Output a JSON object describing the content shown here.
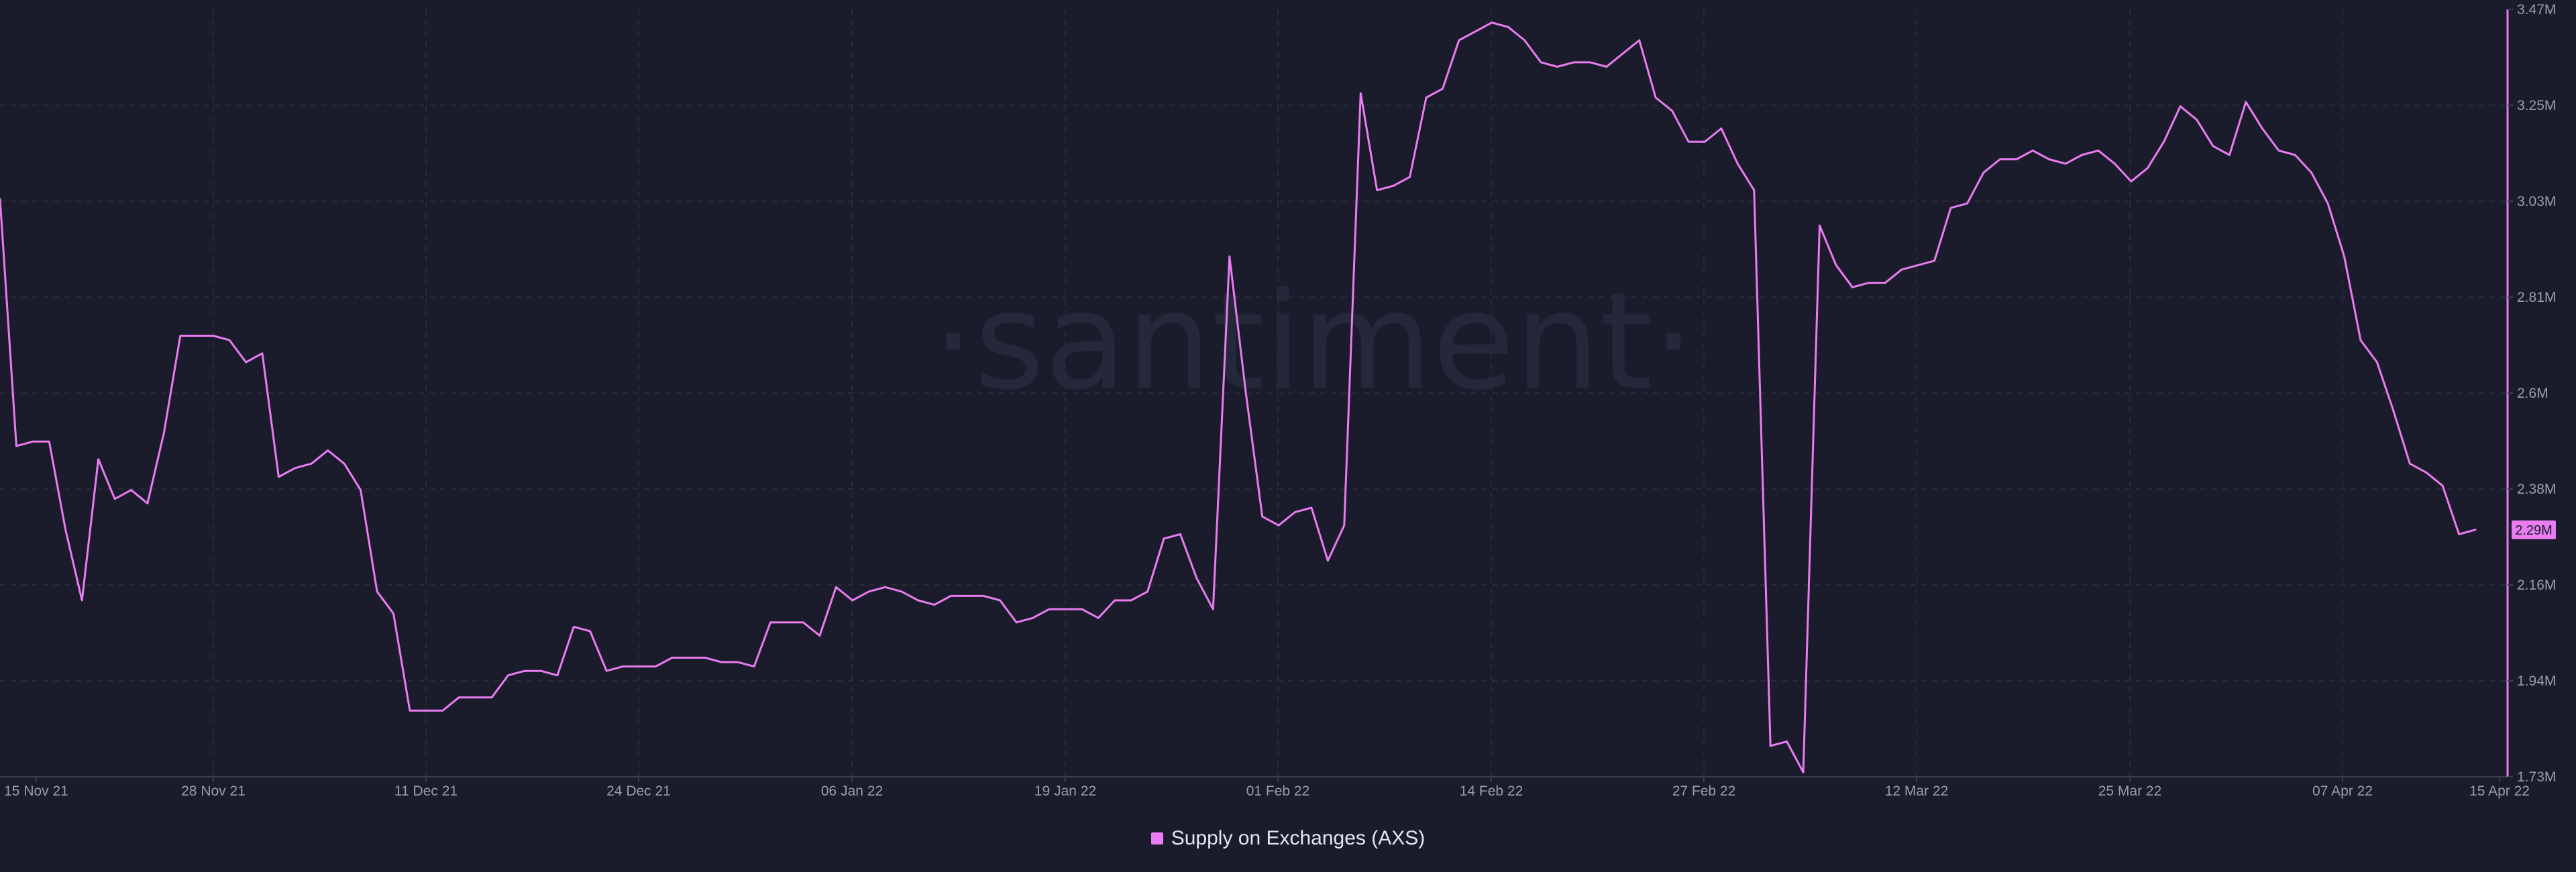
{
  "watermark": "·santiment·",
  "colors": {
    "background": "#1b1c2b",
    "series": "#e87cf0",
    "grid": "#2c2e40",
    "axis": "#3a3c50",
    "tick_text": "#9a9cab",
    "label_text": "#1b1c2b"
  },
  "legend": {
    "label": "Supply on Exchanges (AXS)",
    "placement": "bottom-center"
  },
  "current_value_label": "2.29M",
  "chart_data": {
    "type": "line",
    "title": "",
    "xlabel": "",
    "ylabel": "",
    "grid": true,
    "x_tick_labels": [
      "15 Nov 21",
      "28 Nov 21",
      "11 Dec 21",
      "24 Dec 21",
      "06 Jan 22",
      "19 Jan 22",
      "01 Feb 22",
      "14 Feb 22",
      "27 Feb 22",
      "12 Mar 22",
      "25 Mar 22",
      "07 Apr 22",
      "15 Apr 22"
    ],
    "y_tick_labels": [
      "3.47M",
      "3.25M",
      "3.03M",
      "2.81M",
      "2.6M",
      "2.38M",
      "2.16M",
      "1.94M",
      "1.73M"
    ],
    "ylim": [
      1.73,
      3.47
    ],
    "y_unit": "M",
    "series": [
      {
        "name": "Supply on Exchanges (AXS)",
        "values": [
          3.04,
          2.48,
          2.49,
          2.49,
          2.29,
          2.13,
          2.45,
          2.36,
          2.38,
          2.35,
          2.51,
          2.73,
          2.73,
          2.73,
          2.72,
          2.67,
          2.69,
          2.41,
          2.43,
          2.44,
          2.47,
          2.44,
          2.38,
          2.15,
          2.1,
          1.88,
          1.88,
          1.88,
          1.91,
          1.91,
          1.91,
          1.96,
          1.97,
          1.97,
          1.96,
          2.07,
          2.06,
          1.97,
          1.98,
          1.98,
          1.98,
          2.0,
          2.0,
          2.0,
          1.99,
          1.99,
          1.98,
          2.08,
          2.08,
          2.08,
          2.05,
          2.16,
          2.13,
          2.15,
          2.16,
          2.15,
          2.13,
          2.12,
          2.14,
          2.14,
          2.14,
          2.13,
          2.08,
          2.09,
          2.11,
          2.11,
          2.11,
          2.09,
          2.13,
          2.13,
          2.15,
          2.27,
          2.28,
          2.18,
          2.11,
          2.91,
          2.6,
          2.32,
          2.3,
          2.33,
          2.34,
          2.22,
          2.3,
          3.28,
          3.06,
          3.07,
          3.09,
          3.27,
          3.29,
          3.4,
          3.42,
          3.44,
          3.43,
          3.4,
          3.35,
          3.34,
          3.35,
          3.35,
          3.34,
          3.37,
          3.4,
          3.27,
          3.24,
          3.17,
          3.17,
          3.2,
          3.12,
          3.06,
          1.8,
          1.81,
          1.74,
          2.98,
          2.89,
          2.84,
          2.85,
          2.85,
          2.88,
          2.89,
          2.9,
          3.02,
          3.03,
          3.1,
          3.13,
          3.13,
          3.15,
          3.13,
          3.12,
          3.14,
          3.15,
          3.12,
          3.08,
          3.11,
          3.17,
          3.25,
          3.22,
          3.16,
          3.14,
          3.26,
          3.2,
          3.15,
          3.14,
          3.1,
          3.03,
          2.91,
          2.72,
          2.67,
          2.56,
          2.44,
          2.42,
          2.39,
          2.28,
          2.29
        ],
        "last_value": 2.29
      }
    ]
  }
}
